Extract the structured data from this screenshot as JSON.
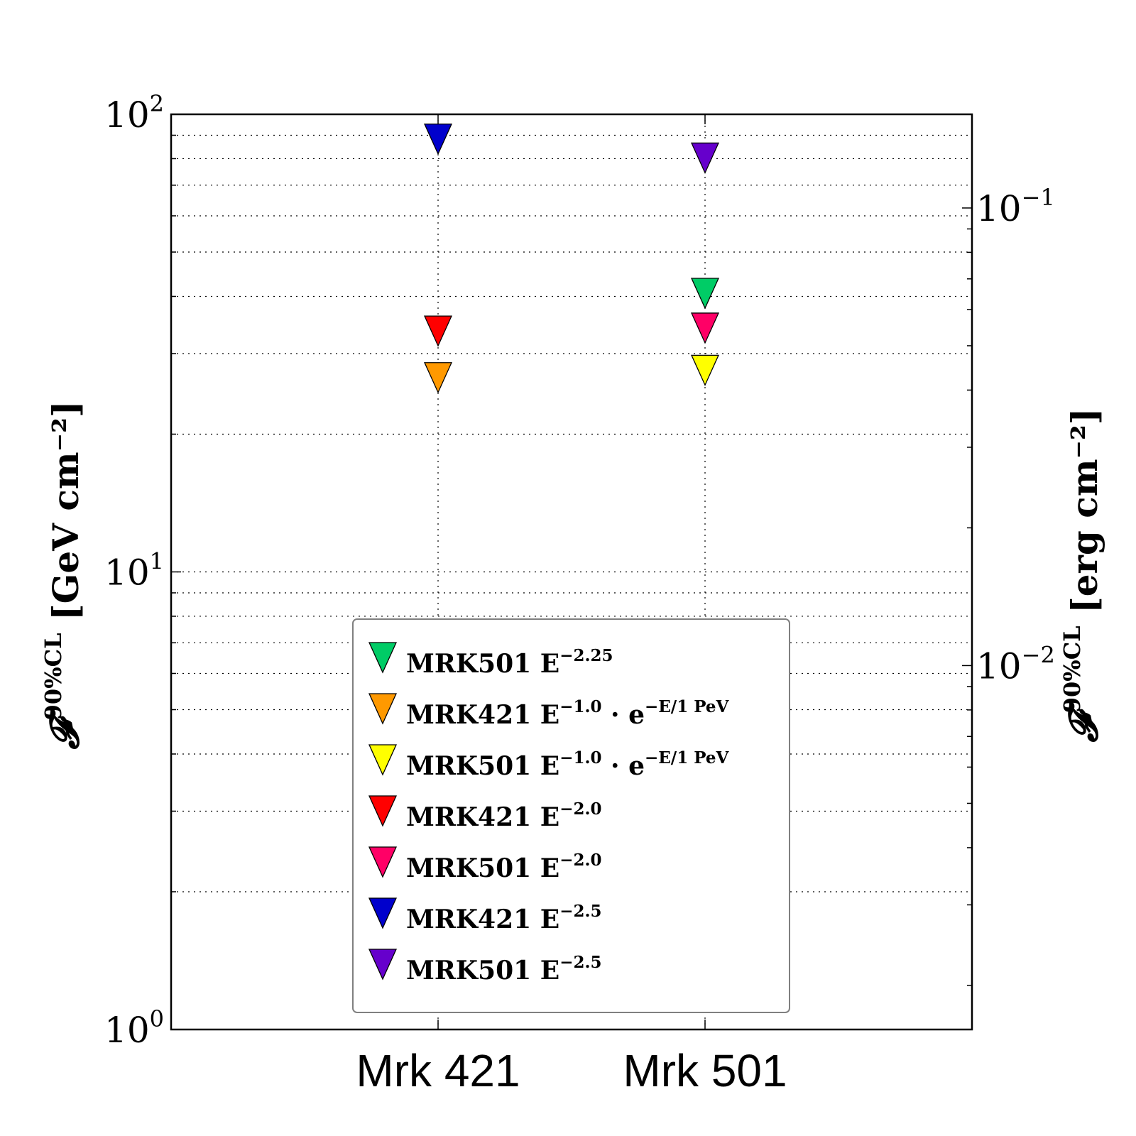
{
  "chart_data": {
    "type": "scatter",
    "categories": [
      "Mrk 421",
      "Mrk 501"
    ],
    "y_scale": "log",
    "ylim": [
      1,
      100
    ],
    "y_ticks": [
      {
        "base": "10",
        "exp": "0",
        "value": 1
      },
      {
        "base": "10",
        "exp": "1",
        "value": 10
      },
      {
        "base": "10",
        "exp": "2",
        "value": 100
      }
    ],
    "ylabel_left": {
      "symbol": "𝓕",
      "sup": "90%CL",
      "unit": "[GeV cm⁻²]"
    },
    "right_axis": {
      "scale": "log",
      "ticks": [
        {
          "base": "10",
          "exp": "−1",
          "value": 0.1
        },
        {
          "base": "10",
          "exp": "−2",
          "value": 0.01
        }
      ],
      "gev_to_erg": 0.0016022,
      "label": {
        "symbol": "𝓕",
        "sup": "90%CL",
        "unit": "[erg cm⁻²]"
      }
    },
    "grid": true,
    "legend_position": "lower center",
    "marker": "triangle-down",
    "series": [
      {
        "name": "MRK501 E",
        "sup": "−2.25",
        "tail": "",
        "category": "Mrk 501",
        "value": 40.5,
        "color": "#00cc66"
      },
      {
        "name": "MRK421 E",
        "sup": "−1.0",
        "tail": " · e",
        "tail_sup": "−E/1 PeV",
        "category": "Mrk 421",
        "value": 26.5,
        "color": "#ff9900"
      },
      {
        "name": "MRK501 E",
        "sup": "−1.0",
        "tail": " · e",
        "tail_sup": "−E/1 PeV",
        "category": "Mrk 501",
        "value": 27.5,
        "color": "#ffff00"
      },
      {
        "name": "MRK421 E",
        "sup": "−2.0",
        "tail": "",
        "category": "Mrk 421",
        "value": 33.5,
        "color": "#ff0000"
      },
      {
        "name": "MRK501 E",
        "sup": "−2.0",
        "tail": "",
        "category": "Mrk 501",
        "value": 34.0,
        "color": "#ff0066"
      },
      {
        "name": "MRK421 E",
        "sup": "−2.5",
        "tail": "",
        "category": "Mrk 421",
        "value": 88.0,
        "color": "#0000cc"
      },
      {
        "name": "MRK501 E",
        "sup": "−2.5",
        "tail": "",
        "category": "Mrk 501",
        "value": 80.0,
        "color": "#6600cc"
      }
    ]
  }
}
